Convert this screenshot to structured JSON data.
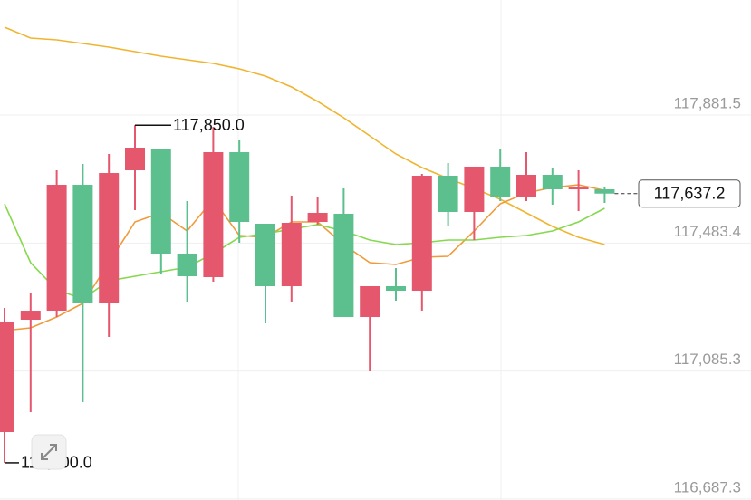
{
  "chart_data": {
    "type": "candlestick",
    "up_color": "#e5576c",
    "down_color": "#5cbf8e",
    "open": [
      116895.6,
      117244.9,
      117273.0,
      117664.6,
      117295.6,
      117709.7,
      117774.5,
      117450.5,
      117377.3,
      117766.0,
      117543.5,
      117349.1,
      117549.1,
      117574.5,
      117253.3,
      117349.1,
      117335.0,
      117692.8,
      117580.1,
      117721.0,
      117625.2,
      117695.6,
      117650.5,
      117650.5
    ],
    "high": [
      117281.5,
      117329.4,
      117709.7,
      117729.4,
      117760.4,
      117850.0,
      117774.5,
      117613.9,
      117844.9,
      117802.7,
      117543.5,
      117630.8,
      117625.2,
      117653.3,
      117349.1,
      117405.4,
      117698.4,
      117732.2,
      117721.0,
      117774.5,
      117766.0,
      117715.3,
      117709.7,
      117656.1
    ],
    "low": [
      116800.0,
      116957.6,
      117253.3,
      116988.5,
      117191.4,
      117585.8,
      117385.7,
      117301.2,
      117363.2,
      117484.3,
      117233.6,
      117301.2,
      117540.7,
      117253.3,
      117084.3,
      117304.1,
      117273.0,
      117535.0,
      117492.8,
      117613.9,
      117613.9,
      117602.7,
      117582.9,
      117608.3
    ],
    "close": [
      117239.3,
      117273.0,
      117664.6,
      117295.6,
      117701.2,
      117780.1,
      117450.5,
      117380.1,
      117766.0,
      117549.1,
      117349.1,
      117546.3,
      117577.3,
      117253.3,
      117349.1,
      117335.0,
      117692.8,
      117580.1,
      117721.0,
      117625.2,
      117695.6,
      117650.5,
      117656.1,
      117637.2
    ],
    "lines": [
      {
        "color": "#f0b530",
        "values": [
          118154.8,
          118121.0,
          118115.4,
          118104.1,
          118092.8,
          118078.7,
          118064.6,
          118053.4,
          118042.1,
          118025.2,
          118002.7,
          117968.9,
          117923.8,
          117873.1,
          117816.8,
          117760.4,
          117718.2,
          117684.4,
          117653.3,
          117619.6,
          117577.3,
          117535.0,
          117501.2,
          117478.7
        ]
      },
      {
        "color": "#f09a3a",
        "values": [
          117211.1,
          117219.5,
          117253.3,
          117295.6,
          117422.3,
          117549.1,
          117577.3,
          117520.9,
          117619.6,
          117506.9,
          117501.2,
          117549.1,
          117549.1,
          117478.7,
          117422.3,
          117416.7,
          117439.3,
          117442.1,
          117520.9,
          117605.5,
          117639.3,
          117656.1,
          117664.6,
          117647.5
        ]
      },
      {
        "color": "#86d84e",
        "values": [
          117605.5,
          117422.3,
          117337.8,
          117309.6,
          117366.0,
          117380.1,
          117394.2,
          117408.3,
          117450.5,
          117501.2,
          117512.5,
          117526.6,
          117540.7,
          117520.9,
          117492.8,
          117478.7,
          117484.3,
          117492.8,
          117492.8,
          117501.2,
          117506.9,
          117520.9,
          117549.1,
          117591.4
        ]
      }
    ],
    "ylim": [
      116684.3,
      118239.3
    ],
    "yticks": [
      {
        "value": 117881.5,
        "label": "117,881.5"
      },
      {
        "value": 117483.4,
        "label": "117,483.4"
      },
      {
        "value": 117085.3,
        "label": "117,085.3"
      },
      {
        "value": 116687.3,
        "label": "116,687.3"
      }
    ],
    "grid": true,
    "annotations": [
      {
        "value": 117850.0,
        "label": "117,850.0"
      },
      {
        "value": 116800.0,
        "label": "116,800.0"
      }
    ],
    "last_price": {
      "value": 117637.2,
      "label": "117,637.2"
    }
  }
}
